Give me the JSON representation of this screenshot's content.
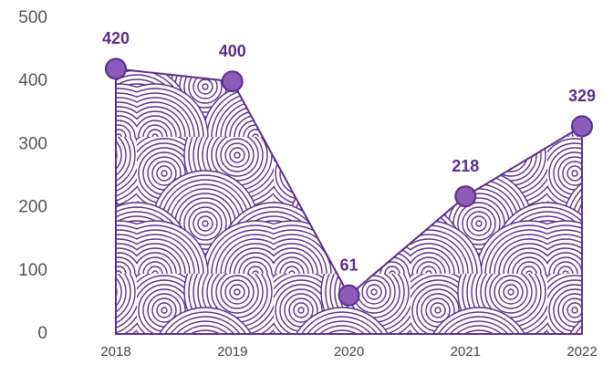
{
  "chart_data": {
    "type": "area",
    "categories": [
      "2018",
      "2019",
      "2020",
      "2021",
      "2022"
    ],
    "values": [
      420,
      400,
      61,
      218,
      329
    ],
    "color": "#5b2d8a",
    "marker_color": "#8a5cb8",
    "ylim": [
      0,
      500
    ],
    "yticks": [
      0,
      100,
      200,
      300,
      400,
      500
    ],
    "grid": false
  }
}
